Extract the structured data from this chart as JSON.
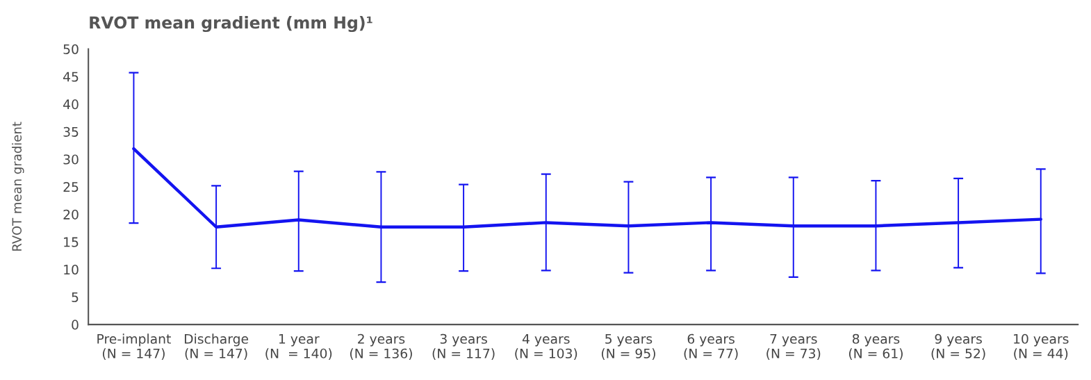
{
  "chart_data": {
    "type": "line",
    "title": "RVOT mean gradient (mm Hg)¹",
    "ylabel": "RVOT mean gradient",
    "categories": [
      "Pre-implant\n(N = 147)",
      "Discharge\n(N = 147)",
      "1 year\n(N  = 140)",
      "2 years\n(N = 136)",
      "3 years\n(N = 117)",
      "4 years\n(N = 103)",
      "5 years\n(N = 95)",
      "6 years\n(N = 77)",
      "7 years\n(N = 73)",
      "8 years\n(N = 61)",
      "9 years\n(N = 52)",
      "10 years\n(N = 44)"
    ],
    "series": [
      {
        "color": "#1414f0",
        "values": [
          31.9,
          17.7,
          19.0,
          17.7,
          17.7,
          18.5,
          17.9,
          18.5,
          17.9,
          17.9,
          18.5,
          19.1
        ],
        "errors": [
          [
            18.4,
            45.7
          ],
          [
            10.2,
            25.2
          ],
          [
            9.7,
            27.8
          ],
          [
            7.7,
            27.7
          ],
          [
            9.7,
            25.4
          ],
          [
            9.8,
            27.3
          ],
          [
            9.4,
            25.9
          ],
          [
            9.8,
            26.7
          ],
          [
            8.6,
            26.7
          ],
          [
            9.8,
            26.1
          ],
          [
            10.3,
            26.5
          ],
          [
            9.3,
            28.2
          ]
        ]
      }
    ],
    "ylim": [
      0,
      50
    ],
    "yticks": [
      0,
      5,
      10,
      15,
      20,
      25,
      30,
      35,
      40,
      45,
      50
    ],
    "grid": false,
    "marker": "none",
    "line_style": "solid"
  }
}
